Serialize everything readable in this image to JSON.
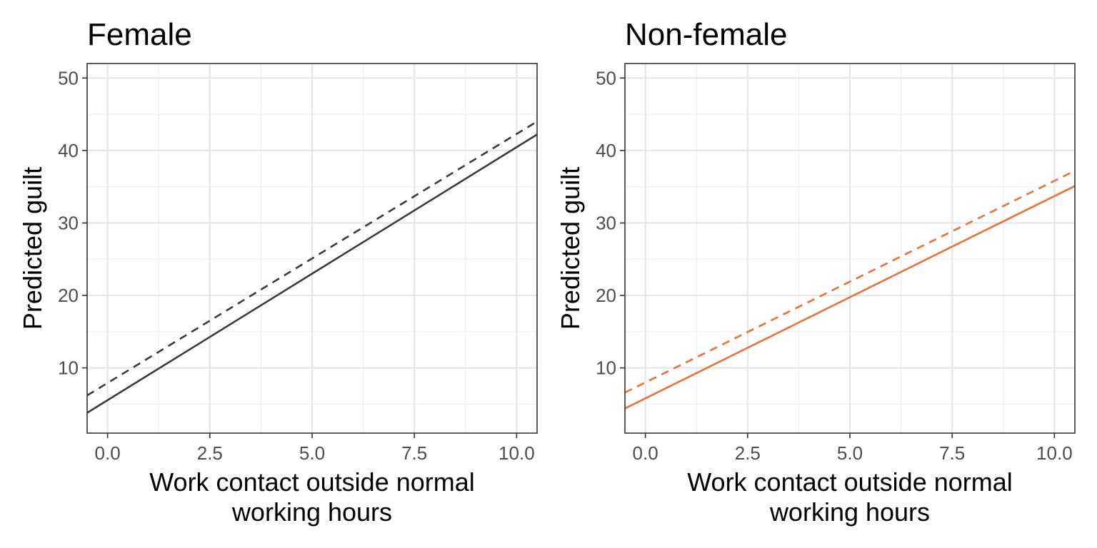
{
  "chart_data": [
    {
      "type": "line",
      "title": "Female",
      "xlabel": [
        "Work contact outside normal",
        "working hours"
      ],
      "ylabel": "Predicted guilt",
      "xlim": [
        -0.5,
        10.5
      ],
      "ylim": [
        1,
        52
      ],
      "x_ticks": [
        0,
        2.5,
        5,
        7.5,
        10
      ],
      "x_tick_labels": [
        "0.0",
        "2.5",
        "5.0",
        "7.5",
        "10.0"
      ],
      "y_ticks": [
        10,
        20,
        30,
        40,
        50
      ],
      "y_tick_labels": [
        "10",
        "20",
        "30",
        "40",
        "50"
      ],
      "grid": true,
      "color": "#3a3a40",
      "series": [
        {
          "style": "dashed",
          "x": [
            -0.5,
            10.5
          ],
          "y": [
            6.2,
            44.0
          ]
        },
        {
          "style": "solid",
          "x": [
            -0.5,
            10.5
          ],
          "y": [
            3.8,
            42.2
          ]
        }
      ]
    },
    {
      "type": "line",
      "title": "Non-female",
      "xlabel": [
        "Work contact outside normal",
        "working hours"
      ],
      "ylabel": "Predicted guilt",
      "xlim": [
        -0.5,
        10.5
      ],
      "ylim": [
        1,
        52
      ],
      "x_ticks": [
        0,
        2.5,
        5,
        7.5,
        10
      ],
      "x_tick_labels": [
        "0.0",
        "2.5",
        "5.0",
        "7.5",
        "10.0"
      ],
      "y_ticks": [
        10,
        20,
        30,
        40,
        50
      ],
      "y_tick_labels": [
        "10",
        "20",
        "30",
        "40",
        "50"
      ],
      "grid": true,
      "color": "#ee7038",
      "series": [
        {
          "style": "dashed",
          "x": [
            -0.5,
            10.5
          ],
          "y": [
            6.6,
            37.2
          ]
        },
        {
          "style": "solid",
          "x": [
            -0.5,
            10.5
          ],
          "y": [
            4.4,
            35.1
          ]
        }
      ]
    }
  ]
}
